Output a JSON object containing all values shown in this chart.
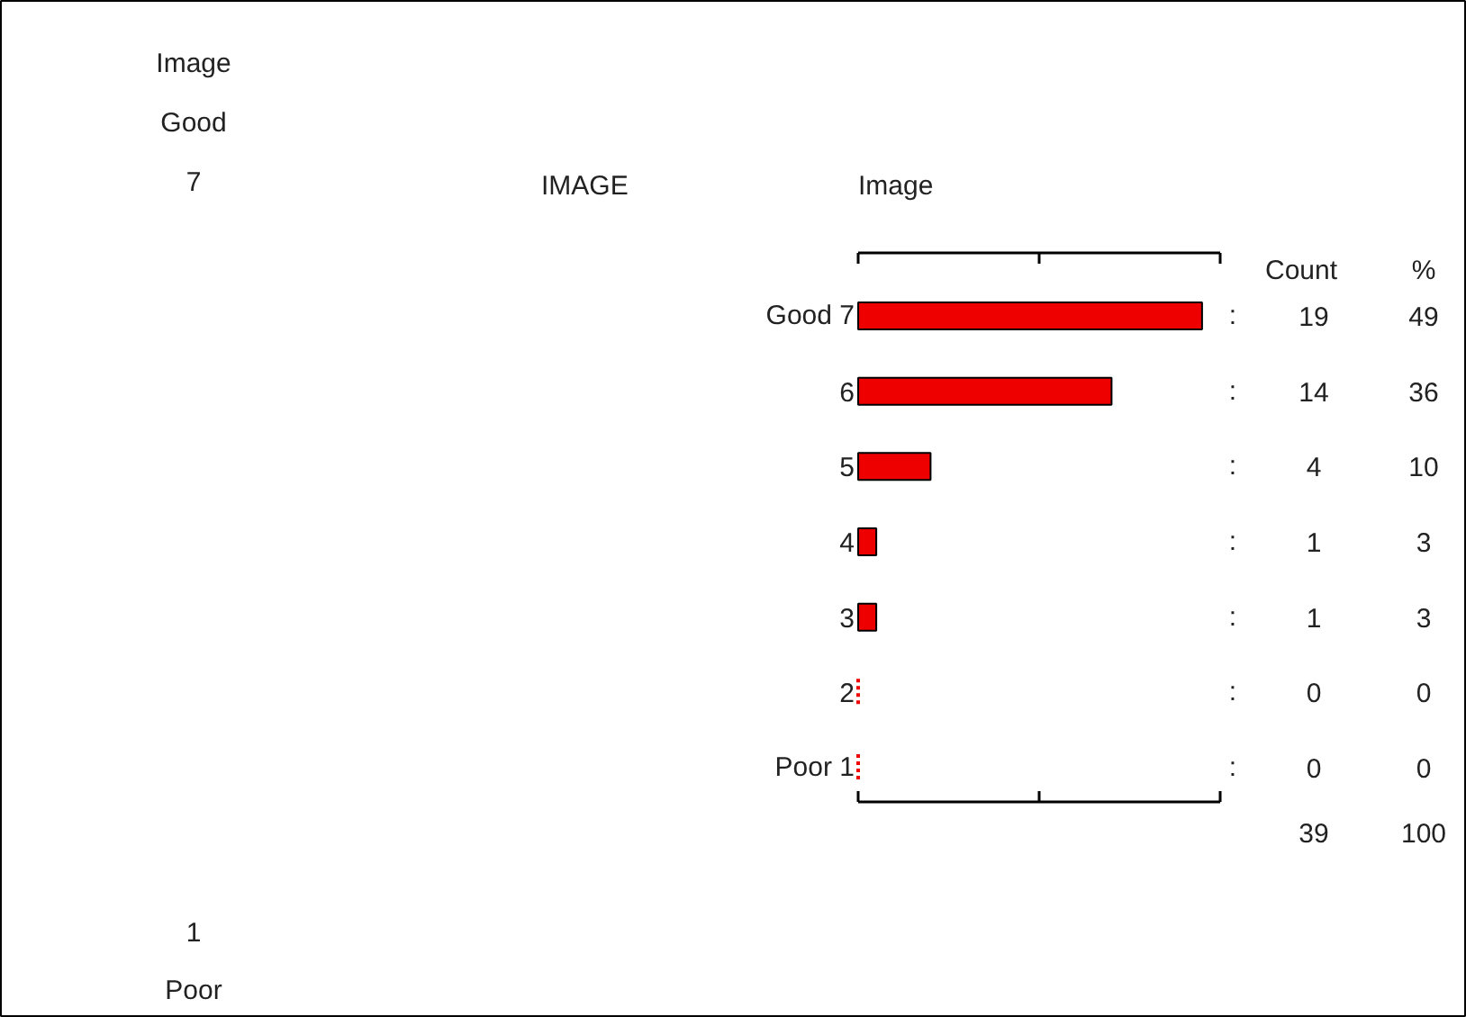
{
  "chart_data": {
    "type": "bar",
    "orientation": "horizontal",
    "title": "IMAGE",
    "xlabel": "Image",
    "categories": [
      "Good 7",
      "6",
      "5",
      "4",
      "3",
      "2",
      "Poor 1"
    ],
    "values": [
      19,
      14,
      4,
      1,
      1,
      0,
      0
    ],
    "color": "#ee0000",
    "data_labels": true,
    "xlim": [
      0,
      20
    ],
    "xticks": [
      {
        "value": 0,
        "label": null
      },
      {
        "value": 10,
        "label": null
      },
      {
        "value": 20,
        "label": null
      }
    ],
    "tick_labels": "y",
    "grid": false,
    "annotations": [
      "Image",
      "Good",
      "7",
      "1",
      "Poor",
      "Count",
      "%",
      "39",
      "100",
      "49",
      "36",
      "10",
      "3",
      "3",
      "0",
      "0",
      ":",
      ":",
      ":",
      ":",
      ":",
      ":",
      ":"
    ]
  }
}
